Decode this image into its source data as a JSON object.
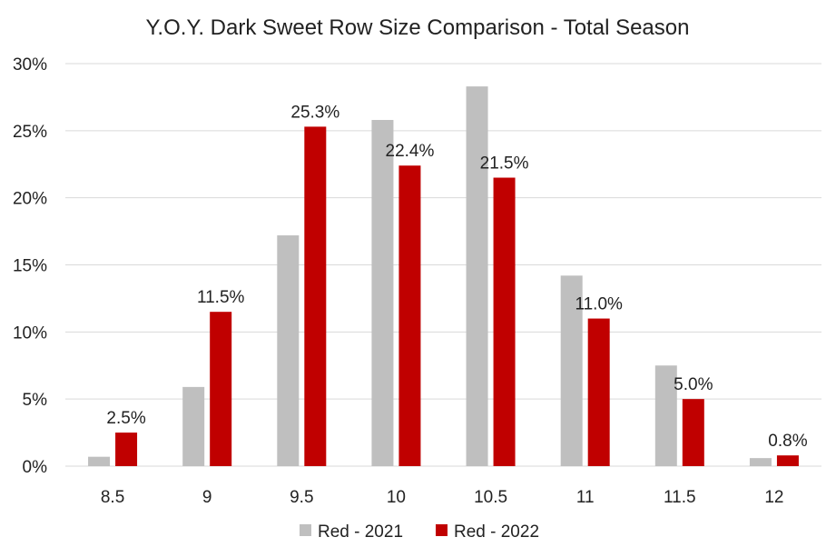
{
  "chart_data": {
    "type": "bar",
    "title": "Y.O.Y. Dark Sweet Row Size Comparison - Total Season",
    "xlabel": "",
    "ylabel": "",
    "categories": [
      "8.5",
      "9",
      "9.5",
      "10",
      "10.5",
      "11",
      "11.5",
      "12"
    ],
    "series": [
      {
        "name": "Red - 2021",
        "color": "#bfbfbf",
        "values": [
          0.7,
          5.9,
          17.2,
          25.8,
          28.3,
          14.2,
          7.5,
          0.6
        ]
      },
      {
        "name": "Red - 2022",
        "color": "#c00000",
        "values": [
          2.5,
          11.5,
          25.3,
          22.4,
          21.5,
          11.0,
          5.0,
          0.8
        ],
        "data_labels": [
          "2.5%",
          "11.5%",
          "25.3%",
          "22.4%",
          "21.5%",
          "11.0%",
          "5.0%",
          "0.8%"
        ]
      }
    ],
    "ylim": [
      0,
      30
    ],
    "yticks": [
      0,
      5,
      10,
      15,
      20,
      25,
      30
    ],
    "ytick_labels": [
      "0%",
      "5%",
      "10%",
      "15%",
      "20%",
      "25%",
      "30%"
    ],
    "grid": true,
    "legend_position": "bottom"
  }
}
